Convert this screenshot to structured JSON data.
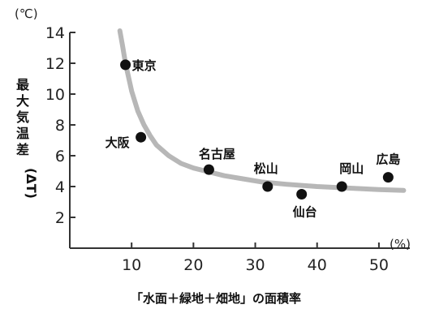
{
  "chart_data": {
    "type": "scatter",
    "title": "",
    "xlabel": "「水面＋緑地＋畑地」の面積率",
    "x_unit": "(%)",
    "ylabel_chars": [
      "最",
      "大",
      "気",
      "温",
      "差"
    ],
    "ylabel_symbol": "(ΔT)",
    "y_unit": "(℃)",
    "xlim": [
      0,
      55
    ],
    "ylim": [
      0,
      14
    ],
    "x_ticks": [
      10,
      20,
      30,
      40,
      50
    ],
    "y_ticks": [
      2,
      4,
      6,
      8,
      10,
      12,
      14
    ],
    "grid": false,
    "points": [
      {
        "label": "東京",
        "x": 9,
        "y": 11.9
      },
      {
        "label": "大阪",
        "x": 11.5,
        "y": 7.2
      },
      {
        "label": "名古屋",
        "x": 22.5,
        "y": 5.1
      },
      {
        "label": "松山",
        "x": 32,
        "y": 4.0
      },
      {
        "label": "仙台",
        "x": 37.5,
        "y": 3.5
      },
      {
        "label": "岡山",
        "x": 44,
        "y": 4.0
      },
      {
        "label": "広島",
        "x": 51.5,
        "y": 4.6
      }
    ],
    "trend_curve": {
      "x": [
        8.1,
        8.5,
        9,
        10,
        11,
        12,
        13,
        14,
        16,
        18,
        20,
        22,
        25,
        28,
        31,
        35,
        40,
        45,
        50,
        54
      ],
      "y": [
        14.2,
        13.2,
        12.0,
        10.2,
        8.9,
        8.0,
        7.3,
        6.7,
        6.0,
        5.5,
        5.2,
        5.0,
        4.7,
        4.5,
        4.3,
        4.15,
        4.0,
        3.9,
        3.8,
        3.75
      ]
    }
  }
}
